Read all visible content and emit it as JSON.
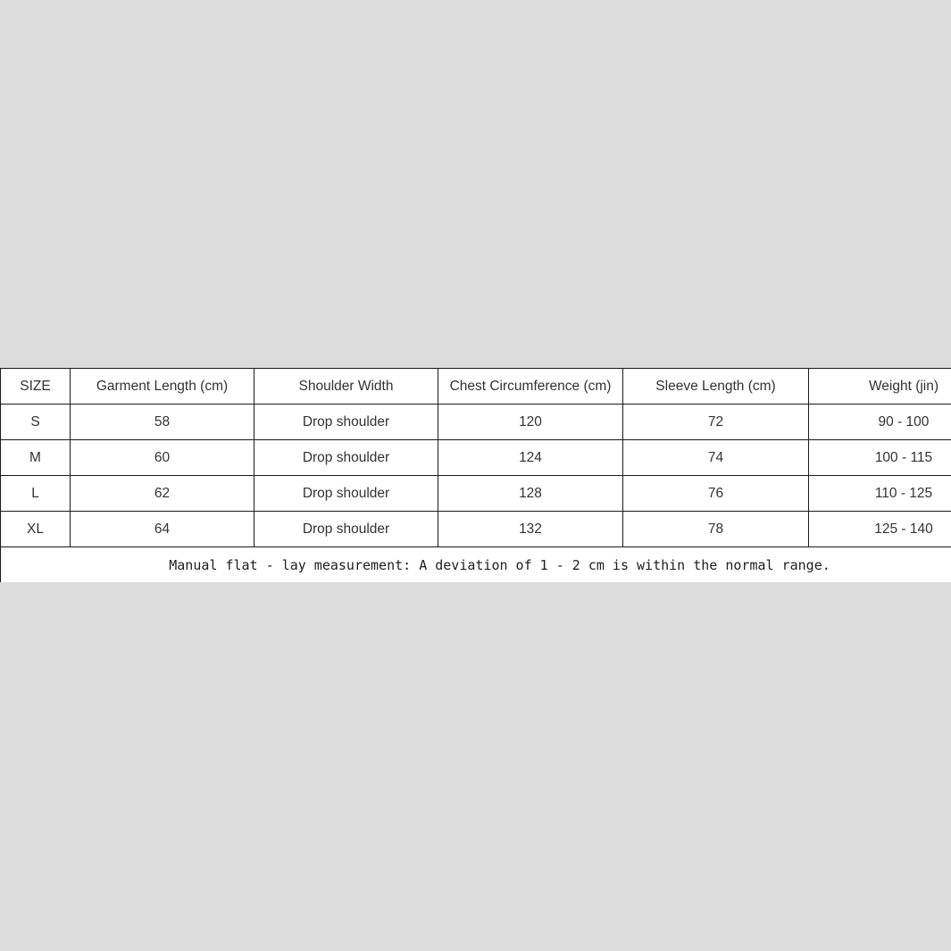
{
  "page": {
    "background_color": "#dcdcdc",
    "table_background": "#ffffff",
    "border_color": "#1b1b1b",
    "text_color": "#333333"
  },
  "size_chart": {
    "columns": [
      "SIZE",
      "Garment Length (cm)",
      "Shoulder Width",
      "Chest Circumference (cm)",
      "Sleeve Length (cm)",
      "Weight (jin)"
    ],
    "rows": [
      [
        "S",
        "58",
        "Drop shoulder",
        "120",
        "72",
        "90 - 100"
      ],
      [
        "M",
        "60",
        "Drop shoulder",
        "124",
        "74",
        "100 - 115"
      ],
      [
        "L",
        "62",
        "Drop shoulder",
        "128",
        "76",
        "110 - 125"
      ],
      [
        "XL",
        "64",
        "Drop shoulder",
        "132",
        "78",
        "125 - 140"
      ]
    ],
    "footnote": "Manual flat - lay measurement: A deviation of 1 - 2 cm is within the normal range."
  }
}
